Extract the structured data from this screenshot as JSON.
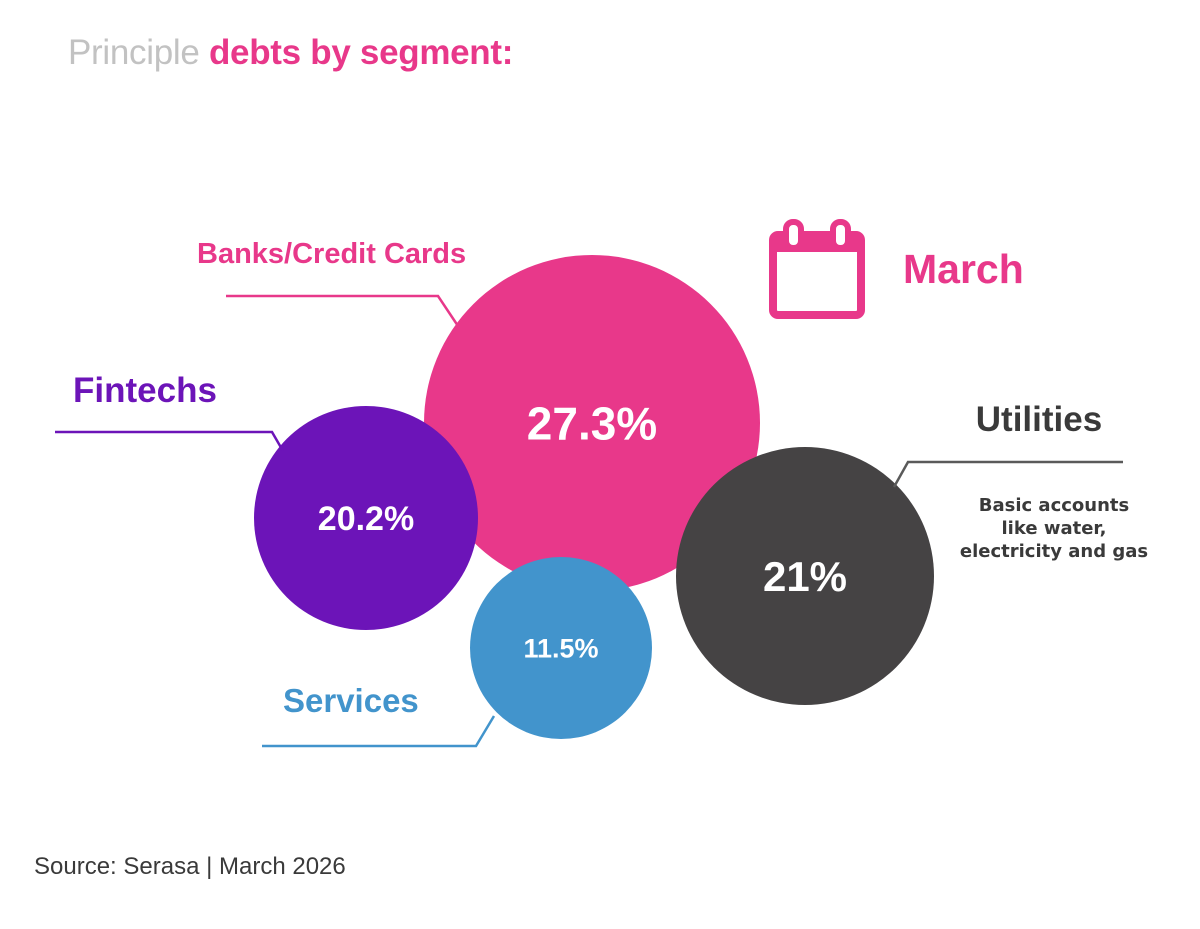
{
  "title": {
    "light": "Principle",
    "strong": "debts by segment:"
  },
  "source": "Source: Serasa | March 2026",
  "period": {
    "label": "March",
    "icon": "calendar-icon",
    "color": "#e8388a"
  },
  "chart_data": {
    "type": "bubble",
    "title": "Principle debts by segment:",
    "unit": "%",
    "series": [
      {
        "label": "Banks/Credit Cards",
        "value": 27.3,
        "display": "27.3%",
        "color": "#e8388a",
        "note": ""
      },
      {
        "label": "Fintechs",
        "value": 20.2,
        "display": "20.2%",
        "color": "#6c14b8",
        "note": ""
      },
      {
        "label": "Services",
        "value": 11.5,
        "display": "11.5%",
        "color": "#4294cc",
        "note": ""
      },
      {
        "label": "Utilities",
        "value": 21,
        "display": "21%",
        "color": "#454344",
        "note": "Basic accounts like water, electricity and gas"
      }
    ]
  }
}
